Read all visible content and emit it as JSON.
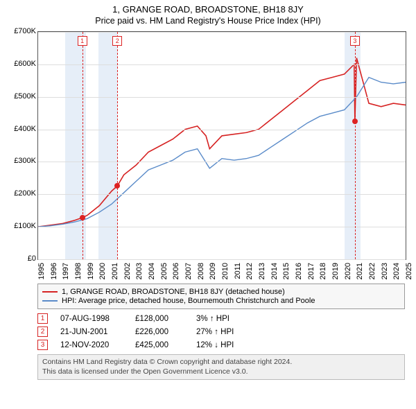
{
  "title": "1, GRANGE ROAD, BROADSTONE, BH18 8JY",
  "subtitle": "Price paid vs. HM Land Registry's House Price Index (HPI)",
  "chart": {
    "type": "line",
    "x_min": 1995,
    "x_max": 2025,
    "y_min": 0,
    "y_max": 700000,
    "y_ticks": [
      0,
      100000,
      200000,
      300000,
      400000,
      500000,
      600000,
      700000
    ],
    "y_tick_format": "£K",
    "x_ticks": [
      1995,
      1996,
      1997,
      1998,
      1999,
      2000,
      2001,
      2002,
      2003,
      2004,
      2005,
      2006,
      2007,
      2008,
      2009,
      2010,
      2011,
      2012,
      2013,
      2014,
      2015,
      2016,
      2017,
      2018,
      2019,
      2020,
      2021,
      2022,
      2023,
      2024,
      2025
    ],
    "plot_border_color": "#555",
    "grid_color": "#ddd",
    "background_color": "#ffffff",
    "bands": [
      {
        "from": 1997.2,
        "to": 1998.9,
        "color": "#e6eef8"
      },
      {
        "from": 1999.9,
        "to": 2001.5,
        "color": "#e6eef8"
      },
      {
        "from": 2020.0,
        "to": 2021.3,
        "color": "#e6eef8"
      }
    ],
    "series": [
      {
        "name": "property",
        "color": "#d62222",
        "width": 1.6,
        "data": [
          [
            1995,
            100000
          ],
          [
            1996,
            105000
          ],
          [
            1997,
            110000
          ],
          [
            1998,
            120000
          ],
          [
            1998.6,
            128000
          ],
          [
            1999,
            135000
          ],
          [
            2000,
            165000
          ],
          [
            2001,
            210000
          ],
          [
            2001.47,
            226000
          ],
          [
            2002,
            260000
          ],
          [
            2003,
            290000
          ],
          [
            2004,
            330000
          ],
          [
            2005,
            350000
          ],
          [
            2006,
            370000
          ],
          [
            2007,
            400000
          ],
          [
            2008,
            410000
          ],
          [
            2008.7,
            380000
          ],
          [
            2009,
            340000
          ],
          [
            2010,
            380000
          ],
          [
            2011,
            385000
          ],
          [
            2012,
            390000
          ],
          [
            2013,
            400000
          ],
          [
            2014,
            430000
          ],
          [
            2015,
            460000
          ],
          [
            2016,
            490000
          ],
          [
            2017,
            520000
          ],
          [
            2018,
            550000
          ],
          [
            2019,
            560000
          ],
          [
            2020,
            570000
          ],
          [
            2020.8,
            600000
          ],
          [
            2020.86,
            425000
          ],
          [
            2021,
            620000
          ],
          [
            2022,
            480000
          ],
          [
            2023,
            470000
          ],
          [
            2024,
            480000
          ],
          [
            2025,
            475000
          ]
        ]
      },
      {
        "name": "hpi",
        "color": "#5a8bc9",
        "width": 1.4,
        "data": [
          [
            1995,
            100000
          ],
          [
            1996,
            103000
          ],
          [
            1997,
            108000
          ],
          [
            1998,
            115000
          ],
          [
            1999,
            125000
          ],
          [
            2000,
            145000
          ],
          [
            2001,
            170000
          ],
          [
            2002,
            205000
          ],
          [
            2003,
            240000
          ],
          [
            2004,
            275000
          ],
          [
            2005,
            290000
          ],
          [
            2006,
            305000
          ],
          [
            2007,
            330000
          ],
          [
            2008,
            340000
          ],
          [
            2009,
            280000
          ],
          [
            2010,
            310000
          ],
          [
            2011,
            305000
          ],
          [
            2012,
            310000
          ],
          [
            2013,
            320000
          ],
          [
            2014,
            345000
          ],
          [
            2015,
            370000
          ],
          [
            2016,
            395000
          ],
          [
            2017,
            420000
          ],
          [
            2018,
            440000
          ],
          [
            2019,
            450000
          ],
          [
            2020,
            460000
          ],
          [
            2021,
            500000
          ],
          [
            2022,
            560000
          ],
          [
            2023,
            545000
          ],
          [
            2024,
            540000
          ],
          [
            2025,
            545000
          ]
        ]
      }
    ],
    "markers": [
      {
        "n": "1",
        "x": 1998.6,
        "y": 128000,
        "label_side": "top"
      },
      {
        "n": "2",
        "x": 2001.47,
        "y": 226000,
        "label_side": "top"
      },
      {
        "n": "3",
        "x": 2020.86,
        "y": 425000,
        "label_side": "top"
      }
    ]
  },
  "legend": [
    {
      "color": "#d62222",
      "label": "1, GRANGE ROAD, BROADSTONE, BH18 8JY (detached house)"
    },
    {
      "color": "#5a8bc9",
      "label": "HPI: Average price, detached house, Bournemouth Christchurch and Poole"
    }
  ],
  "events": [
    {
      "n": "1",
      "date": "07-AUG-1998",
      "price": "£128,000",
      "delta": "3%",
      "arrow": "↑",
      "vs": "HPI",
      "box_color": "#d62222"
    },
    {
      "n": "2",
      "date": "21-JUN-2001",
      "price": "£226,000",
      "delta": "27%",
      "arrow": "↑",
      "vs": "HPI",
      "box_color": "#d62222"
    },
    {
      "n": "3",
      "date": "12-NOV-2020",
      "price": "£425,000",
      "delta": "12%",
      "arrow": "↓",
      "vs": "HPI",
      "box_color": "#d62222"
    }
  ],
  "license": {
    "line1": "Contains HM Land Registry data © Crown copyright and database right 2024.",
    "line2": "This data is licensed under the Open Government Licence v3.0."
  },
  "fonts": {
    "title": 13,
    "subtitle": 12.5,
    "axis": 11,
    "legend": 11,
    "events": 11.5,
    "license": 10.5
  }
}
